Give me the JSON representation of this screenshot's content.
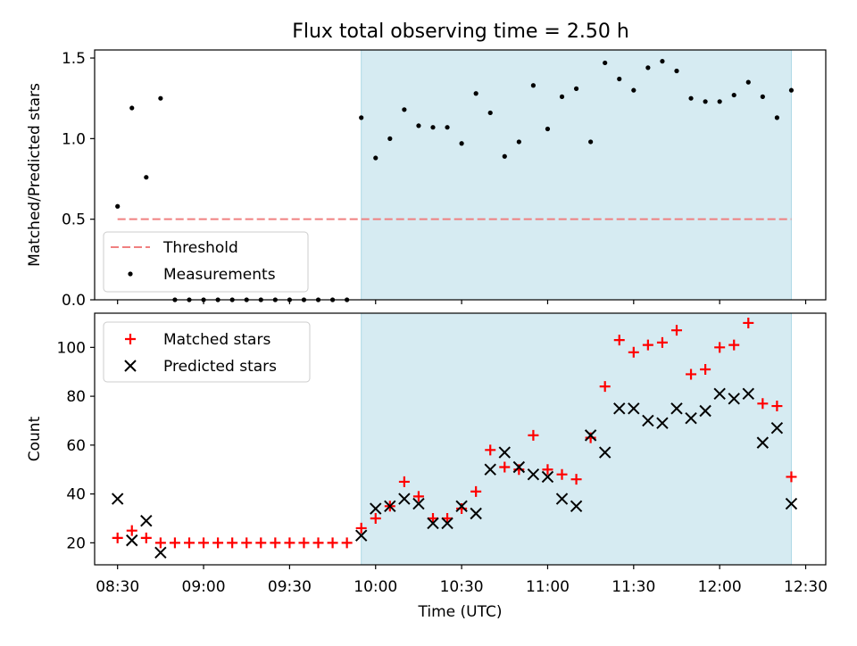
{
  "figure_title": "Flux total observing time = 2.50 h",
  "colors": {
    "shade": "#add8e6",
    "threshold": "#f08080",
    "matched": "#ff0000",
    "predicted": "#000000"
  },
  "chart_data": [
    {
      "type": "scatter",
      "title": "Flux total observing time = 2.50 h",
      "xlabel": "",
      "ylabel": "Matched/Predicted stars",
      "xlim": [
        "08:22",
        "12:37"
      ],
      "ylim": [
        0,
        1.55
      ],
      "yticks": [
        "0.0",
        "0.5",
        "1.0",
        "1.5"
      ],
      "xticks": [
        "08:30",
        "09:00",
        "09:30",
        "10:00",
        "10:30",
        "11:00",
        "11:30",
        "12:00",
        "12:30"
      ],
      "shaded_span": [
        "09:55",
        "12:25"
      ],
      "threshold": {
        "name": "Threshold",
        "value": 0.5,
        "x": [
          "08:30",
          "12:25"
        ]
      },
      "legend": {
        "position": "lower left",
        "entries": [
          "Threshold",
          "Measurements"
        ]
      },
      "series": [
        {
          "name": "Measurements",
          "x": [
            "08:30",
            "08:35",
            "08:40",
            "08:45",
            "08:50",
            "08:55",
            "09:00",
            "09:05",
            "09:10",
            "09:15",
            "09:20",
            "09:25",
            "09:30",
            "09:35",
            "09:40",
            "09:45",
            "09:50",
            "09:55",
            "10:00",
            "10:05",
            "10:10",
            "10:15",
            "10:20",
            "10:25",
            "10:30",
            "10:35",
            "10:40",
            "10:45",
            "10:50",
            "10:55",
            "11:00",
            "11:05",
            "11:10",
            "11:15",
            "11:20",
            "11:25",
            "11:30",
            "11:35",
            "11:40",
            "11:45",
            "11:50",
            "11:55",
            "12:00",
            "12:05",
            "12:10",
            "12:15",
            "12:20",
            "12:25"
          ],
          "y": [
            0.58,
            1.19,
            0.76,
            1.25,
            0,
            0,
            0,
            0,
            0,
            0,
            0,
            0,
            0,
            0,
            0,
            0,
            0,
            1.13,
            0.88,
            1.0,
            1.18,
            1.08,
            1.07,
            1.07,
            0.97,
            1.28,
            1.16,
            0.89,
            0.98,
            1.33,
            1.06,
            1.26,
            1.31,
            0.98,
            1.47,
            1.37,
            1.3,
            1.44,
            1.48,
            1.42,
            1.25,
            1.23,
            1.23,
            1.27,
            1.35,
            1.26,
            1.13,
            1.3
          ]
        }
      ]
    },
    {
      "type": "scatter",
      "title": "",
      "xlabel": "Time (UTC)",
      "ylabel": "Count",
      "xlim": [
        "08:22",
        "12:37"
      ],
      "ylim": [
        11,
        114
      ],
      "yticks": [
        "20",
        "40",
        "60",
        "80",
        "100"
      ],
      "xticks": [
        "08:30",
        "09:00",
        "09:30",
        "10:00",
        "10:30",
        "11:00",
        "11:30",
        "12:00",
        "12:30"
      ],
      "shaded_span": [
        "09:55",
        "12:25"
      ],
      "legend": {
        "position": "upper left",
        "entries": [
          "Matched stars",
          "Predicted stars"
        ]
      },
      "series": [
        {
          "name": "Matched stars",
          "x": [
            "08:30",
            "08:35",
            "08:40",
            "08:45",
            "08:50",
            "08:55",
            "09:00",
            "09:05",
            "09:10",
            "09:15",
            "09:20",
            "09:25",
            "09:30",
            "09:35",
            "09:40",
            "09:45",
            "09:50",
            "09:55",
            "10:00",
            "10:05",
            "10:10",
            "10:15",
            "10:20",
            "10:25",
            "10:30",
            "10:35",
            "10:40",
            "10:45",
            "10:50",
            "10:55",
            "11:00",
            "11:05",
            "11:10",
            "11:15",
            "11:20",
            "11:25",
            "11:30",
            "11:35",
            "11:40",
            "11:45",
            "11:50",
            "11:55",
            "12:00",
            "12:05",
            "12:10",
            "12:15",
            "12:20",
            "12:25"
          ],
          "y": [
            22,
            25,
            22,
            20,
            20,
            20,
            20,
            20,
            20,
            20,
            20,
            20,
            20,
            20,
            20,
            20,
            20,
            26,
            30,
            35,
            45,
            39,
            30,
            30,
            34,
            41,
            58,
            51,
            50,
            64,
            50,
            48,
            46,
            63,
            84,
            103,
            98,
            101,
            102,
            107,
            89,
            91,
            100,
            101,
            110,
            77,
            76,
            47
          ]
        },
        {
          "name": "Predicted stars",
          "x": [
            "08:30",
            "08:35",
            "08:40",
            "08:45",
            "09:55",
            "10:00",
            "10:05",
            "10:10",
            "10:15",
            "10:20",
            "10:25",
            "10:30",
            "10:35",
            "10:40",
            "10:45",
            "10:50",
            "10:55",
            "11:00",
            "11:05",
            "11:10",
            "11:15",
            "11:20",
            "11:25",
            "11:30",
            "11:35",
            "11:40",
            "11:45",
            "11:50",
            "11:55",
            "12:00",
            "12:05",
            "12:10",
            "12:15",
            "12:20",
            "12:25"
          ],
          "y": [
            38,
            21,
            29,
            16,
            23,
            34,
            35,
            38,
            36,
            28,
            28,
            35,
            32,
            50,
            57,
            51,
            48,
            47,
            38,
            35,
            64,
            57,
            75,
            75,
            70,
            69,
            75,
            71,
            74,
            81,
            79,
            81,
            61,
            67,
            36
          ]
        }
      ]
    }
  ]
}
